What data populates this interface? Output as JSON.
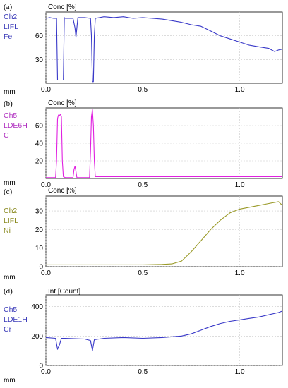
{
  "chart_data": [
    {
      "type": "line",
      "panel_label": "(a)",
      "channel_lines": [
        "Ch2",
        "LIFL",
        "Fe"
      ],
      "channel_color": "#3a3ab8",
      "series_color": "#3838c8",
      "ylabel": "Conc [%]",
      "xlabel": "mm",
      "xlim": [
        0,
        1.22
      ],
      "ylim": [
        0,
        90
      ],
      "yticks": [
        30,
        60
      ],
      "ytick_labels": [
        "30",
        "60"
      ],
      "xticks": [
        0,
        0.5,
        1.0
      ],
      "xtick_labels": [
        "0.0",
        "0.5",
        "1.0"
      ],
      "series": [
        {
          "x": [
            0,
            0.02,
            0.04,
            0.055,
            0.06,
            0.065,
            0.09,
            0.095,
            0.1,
            0.14,
            0.15,
            0.155,
            0.16,
            0.165,
            0.2,
            0.23,
            0.235,
            0.24,
            0.245,
            0.25,
            0.255,
            0.3,
            0.35,
            0.4,
            0.45,
            0.5,
            0.55,
            0.6,
            0.65,
            0.7,
            0.75,
            0.8,
            0.85,
            0.9,
            0.95,
            1.0,
            1.05,
            1.1,
            1.15,
            1.18,
            1.2,
            1.22
          ],
          "y": [
            82,
            83,
            82,
            82,
            4,
            4,
            4,
            83,
            82,
            82,
            70,
            58,
            70,
            83,
            83,
            82,
            60,
            2,
            2,
            60,
            82,
            84,
            83,
            84,
            82,
            83,
            82,
            81,
            79,
            77,
            74,
            72,
            66,
            60,
            56,
            52,
            48,
            46,
            44,
            40,
            42,
            43
          ]
        }
      ]
    },
    {
      "type": "line",
      "panel_label": "(b)",
      "channel_lines": [
        "Ch5",
        "LDE6H",
        "C"
      ],
      "channel_color": "#b030c0",
      "series_color": "#e020e0",
      "ylabel": "Conc [%]",
      "xlabel": "mm",
      "xlim": [
        0,
        1.22
      ],
      "ylim": [
        0,
        80
      ],
      "yticks": [
        20,
        40,
        60
      ],
      "ytick_labels": [
        "20",
        "40",
        "60"
      ],
      "xticks": [
        0,
        0.5,
        1.0
      ],
      "xtick_labels": [
        "0.0",
        "0.5",
        "1.0"
      ],
      "series": [
        {
          "x": [
            0,
            0.05,
            0.055,
            0.06,
            0.065,
            0.07,
            0.075,
            0.08,
            0.085,
            0.09,
            0.1,
            0.14,
            0.145,
            0.15,
            0.155,
            0.16,
            0.2,
            0.225,
            0.23,
            0.235,
            0.24,
            0.245,
            0.25,
            0.255,
            0.3,
            0.5,
            0.8,
            1.0,
            1.22
          ],
          "y": [
            1,
            1,
            20,
            68,
            72,
            71,
            73,
            70,
            20,
            2,
            1,
            1,
            10,
            14,
            8,
            1,
            1,
            1,
            30,
            70,
            78,
            60,
            20,
            2,
            2,
            2,
            2,
            2,
            2
          ]
        }
      ]
    },
    {
      "type": "line",
      "panel_label": "(c)",
      "channel_lines": [
        "Ch2",
        "LIFL",
        "Ni"
      ],
      "channel_color": "#8a8a20",
      "series_color": "#9a9a28",
      "ylabel": "Conc [%]",
      "xlabel": "mm",
      "xlim": [
        0,
        1.22
      ],
      "ylim": [
        0,
        38
      ],
      "yticks": [
        0,
        10,
        20,
        30
      ],
      "ytick_labels": [
        "0",
        "10",
        "20",
        "30"
      ],
      "xticks": [
        0,
        0.5,
        1.0
      ],
      "xtick_labels": [
        "0.0",
        "0.5",
        "1.0"
      ],
      "series": [
        {
          "x": [
            0,
            0.1,
            0.2,
            0.3,
            0.4,
            0.5,
            0.6,
            0.65,
            0.7,
            0.75,
            0.8,
            0.85,
            0.9,
            0.95,
            1.0,
            1.05,
            1.1,
            1.15,
            1.2,
            1.22
          ],
          "y": [
            1,
            1,
            1,
            1,
            1,
            1,
            1.2,
            1.5,
            3,
            8,
            14,
            20,
            25,
            29,
            31,
            32,
            33,
            34,
            35,
            33
          ]
        }
      ]
    },
    {
      "type": "line",
      "panel_label": "(d)",
      "channel_lines": [
        "Ch5",
        "LDE1H",
        "Cr"
      ],
      "channel_color": "#3a3ab8",
      "series_color": "#3838c8",
      "ylabel": "Int [Count]",
      "xlabel": "mm",
      "xlim": [
        0,
        1.22
      ],
      "ylim": [
        0,
        480
      ],
      "yticks": [
        0,
        200,
        400
      ],
      "ytick_labels": [
        "0",
        "200",
        "400"
      ],
      "xticks": [
        0,
        0.5,
        1.0
      ],
      "xtick_labels": [
        "0.0",
        "0.5",
        "1.0"
      ],
      "series": [
        {
          "x": [
            0,
            0.05,
            0.06,
            0.07,
            0.08,
            0.1,
            0.2,
            0.23,
            0.24,
            0.25,
            0.3,
            0.4,
            0.5,
            0.6,
            0.7,
            0.75,
            0.8,
            0.85,
            0.9,
            0.95,
            1.0,
            1.05,
            1.1,
            1.15,
            1.2,
            1.22
          ],
          "y": [
            190,
            185,
            110,
            140,
            185,
            185,
            180,
            170,
            100,
            175,
            185,
            190,
            185,
            190,
            200,
            215,
            240,
            265,
            285,
            300,
            310,
            320,
            330,
            345,
            360,
            370
          ]
        }
      ]
    }
  ]
}
